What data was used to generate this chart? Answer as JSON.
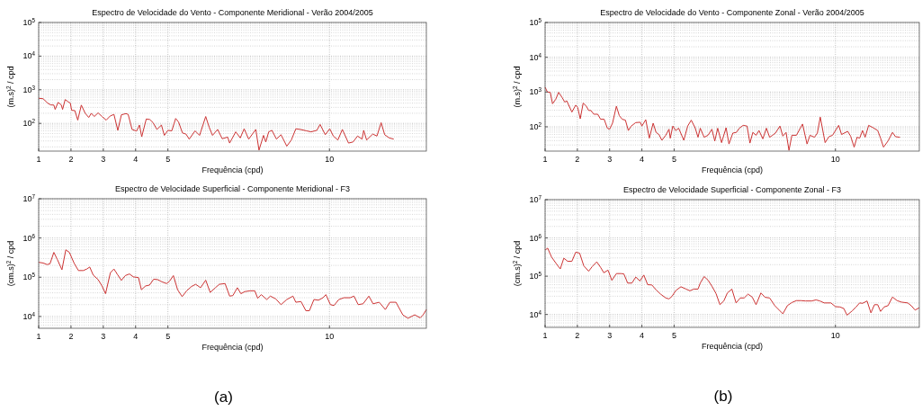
{
  "chart_data": [
    {
      "type": "line",
      "title": "Espectro de Velocidade do Vento - Componente Meridional - Verão 2004/2005",
      "xlabel": "Frequência (cpd)",
      "ylabel": "(m.s)$^{2}$ / cpd",
      "log": "y",
      "grid": true,
      "xlim": [
        1,
        13
      ],
      "xticks": [
        1,
        2,
        3,
        4,
        5,
        10
      ],
      "ylim": [
        15,
        100000
      ],
      "yticks": [
        {
          "value": 100,
          "label": "10$^{2}$"
        },
        {
          "value": 1000,
          "label": "10$^{3}$"
        },
        {
          "value": 10000,
          "label": "10$^{4}$"
        },
        {
          "value": 100000,
          "label": "10$^{5}$"
        }
      ],
      "x": [
        1,
        1.14,
        1.28,
        1.37,
        1.47,
        1.51,
        1.6,
        1.7,
        1.74,
        1.82,
        1.91,
        1.98,
        2.02,
        2.12,
        2.21,
        2.32,
        2.44,
        2.55,
        2.63,
        2.72,
        2.84,
        2.96,
        3.09,
        3.21,
        3.33,
        3.45,
        3.56,
        3.7,
        3.77,
        3.89,
        4.03,
        4.12,
        4.19,
        4.33,
        4.44,
        4.54,
        4.66,
        4.8,
        4.89,
        5,
        5.12,
        5.24,
        5.33,
        5.45,
        5.56,
        5.66,
        5.84,
        5.98,
        6.17,
        6.28,
        6.38,
        6.54,
        6.68,
        6.85,
        6.91,
        7.1,
        7.24,
        7.36,
        7.5,
        7.72,
        7.82,
        7.96,
        8.03,
        8.12,
        8.22,
        8.36,
        8.5,
        8.68,
        8.82,
        8.96,
        9.1,
        9.29,
        9.43,
        9.61,
        9.71,
        9.87,
        10.01,
        10.12,
        10.26,
        10.4,
        10.59,
        10.73,
        10.87,
        11.01,
        11.06,
        11.15,
        11.34,
        11.47,
        11.6,
        11.71,
        11.85,
        11.99
      ],
      "series": [
        {
          "color": "#cc3333",
          "values": [
            560,
            540,
            400,
            355,
            350,
            260,
            420,
            355,
            260,
            510,
            440,
            400,
            245,
            240,
            125,
            350,
            200,
            150,
            200,
            160,
            205,
            160,
            125,
            165,
            185,
            62,
            180,
            195,
            185,
            66,
            59,
            89,
            40,
            135,
            130,
            105,
            66,
            89,
            44,
            62,
            60,
            140,
            110,
            52,
            48,
            34,
            60,
            44,
            160,
            76,
            44,
            66,
            35,
            39,
            26,
            56,
            37,
            69,
            34,
            66,
            16,
            44,
            28,
            56,
            62,
            34,
            46,
            21,
            32,
            69,
            66,
            60,
            56,
            62,
            93,
            46,
            69,
            42,
            32,
            66,
            26,
            28,
            42,
            34,
            62,
            32,
            48,
            42,
            105,
            46,
            37,
            34
          ]
        }
      ]
    },
    {
      "type": "line",
      "title": "Espectro de Velocidade do Vento - Componente Zonal - Verão 2004/2005",
      "xlabel": "Frequência (cpd)",
      "ylabel": "(m.s)$^{2}$ / cpd",
      "log": "y",
      "grid": true,
      "xlim": [
        1,
        12.6
      ],
      "xticks": [
        1,
        2,
        3,
        4,
        5,
        10
      ],
      "ylim": [
        20,
        100000
      ],
      "yticks": [
        {
          "value": 100,
          "label": "10$^{2}$"
        },
        {
          "value": 1000,
          "label": "10$^{3}$"
        },
        {
          "value": 10000,
          "label": "10$^{4}$"
        },
        {
          "value": 100000,
          "label": "10$^{5}$"
        }
      ],
      "x": [
        1,
        1.07,
        1.16,
        1.23,
        1.33,
        1.42,
        1.53,
        1.61,
        1.67,
        1.83,
        1.95,
        2.01,
        2.09,
        2.18,
        2.28,
        2.35,
        2.42,
        2.51,
        2.63,
        2.72,
        2.83,
        2.93,
        3,
        3.09,
        3.21,
        3.3,
        3.39,
        3.49,
        3.58,
        3.67,
        3.81,
        3.95,
        4,
        4.12,
        4.23,
        4.35,
        4.44,
        4.53,
        4.62,
        4.74,
        4.84,
        4.88,
        4.96,
        5.05,
        5.14,
        5.3,
        5.42,
        5.53,
        5.65,
        5.74,
        5.81,
        5.93,
        6.05,
        6.17,
        6.26,
        6.35,
        6.47,
        6.61,
        6.7,
        6.82,
        6.93,
        7.02,
        7.14,
        7.26,
        7.35,
        7.44,
        7.54,
        7.63,
        7.75,
        7.86,
        7.96,
        8.05,
        8.14,
        8.28,
        8.37,
        8.47,
        8.56,
        8.65,
        8.79,
        8.98,
        9.12,
        9.21,
        9.35,
        9.44,
        9.53,
        9.68,
        9.8,
        9.91,
        10.1,
        10.19,
        10.38,
        10.47,
        10.58,
        10.67,
        10.75,
        10.84,
        10.92,
        11.03,
        11.17,
        11.31,
        11.4,
        11.49,
        11.63,
        11.77,
        11.86,
        12
      ],
      "series": [
        {
          "color": "#cc3333",
          "values": [
            1380,
            1000,
            980,
            460,
            620,
            980,
            690,
            510,
            560,
            265,
            420,
            360,
            170,
            480,
            390,
            295,
            295,
            230,
            230,
            165,
            165,
            91,
            85,
            127,
            390,
            210,
            165,
            155,
            78,
            105,
            132,
            135,
            105,
            160,
            47,
            127,
            69,
            60,
            41,
            57,
            85,
            47,
            105,
            78,
            91,
            41,
            105,
            155,
            94,
            50,
            91,
            50,
            57,
            85,
            39,
            91,
            35,
            94,
            32,
            66,
            69,
            91,
            110,
            105,
            34,
            69,
            57,
            78,
            45,
            91,
            50,
            57,
            66,
            105,
            54,
            69,
            21,
            57,
            57,
            120,
            32,
            57,
            50,
            66,
            190,
            35,
            52,
            57,
            110,
            60,
            74,
            54,
            26,
            50,
            47,
            78,
            50,
            110,
            94,
            78,
            47,
            26,
            39,
            69,
            52,
            50
          ]
        }
      ]
    },
    {
      "type": "line",
      "title": "Espectro de Velocidade Superficial - Componente Meridional - F3",
      "xlabel": "Frequência (cpd)",
      "ylabel": "(cm.s)$^{2}$ / cpd",
      "log": "y",
      "grid": true,
      "xlim": [
        1,
        13
      ],
      "xticks": [
        1,
        2,
        3,
        4,
        5,
        10
      ],
      "ylim": [
        5000,
        10000000
      ],
      "yticks": [
        {
          "value": 10000,
          "label": "10$^{4}$"
        },
        {
          "value": 100000,
          "label": "10$^{5}$"
        },
        {
          "value": 1000000,
          "label": "10$^{6}$"
        },
        {
          "value": 10000000,
          "label": "10$^{7}$"
        }
      ],
      "annotations": [
        "(a)"
      ],
      "x": [
        1,
        1.14,
        1.26,
        1.35,
        1.47,
        1.58,
        1.72,
        1.84,
        1.95,
        2.1,
        2.23,
        2.38,
        2.49,
        2.58,
        2.69,
        2.84,
        2.96,
        3.07,
        3.22,
        3.33,
        3.44,
        3.56,
        3.68,
        3.81,
        3.93,
        4.09,
        4.18,
        4.31,
        4.43,
        4.56,
        4.68,
        4.82,
        4.96,
        5.05,
        5.17,
        5.3,
        5.44,
        5.58,
        5.73,
        5.86,
        6.01,
        6.17,
        6.31,
        6.47,
        6.59,
        6.77,
        6.91,
        7.01,
        7.15,
        7.26,
        7.38,
        7.54,
        7.69,
        7.78,
        7.89,
        8.06,
        8.17,
        8.34,
        8.5,
        8.68,
        8.87,
        8.96,
        9.12,
        9.27,
        9.38,
        9.52,
        9.66,
        9.8,
        9.89,
        10.03,
        10.14,
        10.29,
        10.45,
        10.64,
        10.76,
        10.89,
        11.04,
        11.22,
        11.35,
        11.54,
        11.73,
        11.87,
        12.06,
        12.27,
        12.43,
        12.64,
        12.81,
        12.9,
        13
      ],
      "series": [
        {
          "color": "#cc3333",
          "values": [
            240000,
            230000,
            210000,
            220000,
            430000,
            280000,
            155000,
            500000,
            430000,
            225000,
            148000,
            148000,
            162000,
            182000,
            113000,
            87000,
            60000,
            38000,
            131000,
            162000,
            117000,
            83000,
            110000,
            121000,
            102000,
            98000,
            48000,
            60000,
            63000,
            89000,
            87000,
            76000,
            69000,
            79000,
            110000,
            48000,
            32000,
            45000,
            58000,
            66000,
            54000,
            84000,
            41000,
            54000,
            66000,
            69000,
            33000,
            34000,
            54000,
            38000,
            43000,
            45000,
            45000,
            29000,
            36000,
            27000,
            33000,
            28000,
            20000,
            27000,
            33000,
            23000,
            24000,
            14000,
            14000,
            27000,
            26000,
            30000,
            36000,
            20000,
            19000,
            27000,
            30000,
            30000,
            33000,
            20000,
            21000,
            33000,
            21000,
            23000,
            15000,
            23000,
            23000,
            11000,
            9000,
            11000,
            9200,
            11000,
            15000
          ]
        }
      ]
    },
    {
      "type": "line",
      "title": "Espectro de Velocidade Superficial - Componente Zonal - F3",
      "xlabel": "Frequência (cpd)",
      "ylabel": "(cm.s)$^{2}$ / cpd",
      "log": "y",
      "grid": true,
      "xlim": [
        1,
        12.6
      ],
      "xticks": [
        1,
        2,
        3,
        4,
        5,
        10
      ],
      "ylim": [
        4600,
        10000000
      ],
      "yticks": [
        {
          "value": 10000,
          "label": "10$^{4}$"
        },
        {
          "value": 100000,
          "label": "10$^{5}$"
        },
        {
          "value": 1000000,
          "label": "10$^{6}$"
        },
        {
          "value": 10000000,
          "label": "10$^{7}$"
        }
      ],
      "annotations": [
        "(b)"
      ],
      "x": [
        1,
        1.08,
        1.2,
        1.36,
        1.47,
        1.58,
        1.7,
        1.83,
        1.95,
        2.07,
        2.2,
        2.35,
        2.46,
        2.6,
        2.72,
        2.82,
        2.95,
        3.07,
        3.21,
        3.35,
        3.44,
        3.56,
        3.69,
        3.81,
        3.94,
        4.06,
        4.18,
        4.31,
        4.44,
        4.58,
        4.74,
        4.84,
        4.93,
        5.05,
        5.21,
        5.37,
        5.49,
        5.61,
        5.74,
        5.81,
        5.93,
        6.05,
        6.17,
        6.3,
        6.42,
        6.54,
        6.65,
        6.79,
        6.92,
        7.05,
        7.17,
        7.29,
        7.42,
        7.54,
        7.69,
        7.82,
        7.96,
        8.12,
        8.37,
        8.51,
        8.65,
        8.79,
        8.93,
        9.07,
        9.26,
        9.4,
        9.52,
        9.65,
        9.86,
        10,
        10.14,
        10.26,
        10.36,
        10.52,
        10.64,
        10.75,
        10.84,
        10.98,
        11.1,
        11.21,
        11.31,
        11.4,
        11.51,
        11.63,
        11.77,
        11.91,
        12.05,
        12.24,
        12.35,
        12.47,
        12.6
      ],
      "series": [
        {
          "color": "#cc3333",
          "values": [
            480000,
            540000,
            316000,
            205000,
            155000,
            295000,
            245000,
            245000,
            425000,
            400000,
            186000,
            135000,
            178000,
            237000,
            170000,
            123000,
            144000,
            78000,
            117000,
            117000,
            115000,
            66000,
            66000,
            95000,
            75000,
            107000,
            60000,
            59000,
            44000,
            34000,
            27000,
            25500,
            29500,
            42000,
            53000,
            46000,
            41500,
            46000,
            46000,
            66000,
            98000,
            79000,
            55000,
            35000,
            18000,
            22500,
            36500,
            46000,
            20000,
            27000,
            27000,
            34000,
            28500,
            18000,
            36500,
            28000,
            27000,
            17000,
            10400,
            17000,
            20500,
            23000,
            23000,
            22500,
            22500,
            24000,
            22500,
            20000,
            20000,
            16000,
            15700,
            14300,
            9600,
            12400,
            15700,
            20000,
            19500,
            22500,
            11000,
            18000,
            18000,
            12000,
            15700,
            17000,
            28500,
            23000,
            21000,
            20000,
            17000,
            13000,
            15000
          ]
        }
      ]
    }
  ]
}
